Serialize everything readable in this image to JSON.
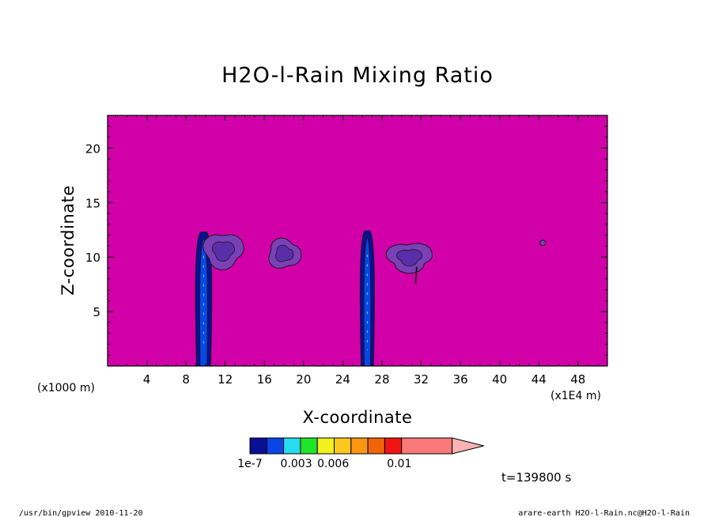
{
  "colors": {
    "background_field": "#d200a8",
    "contour_line": "#1a1a1a"
  },
  "chart_data": {
    "type": "heatmap",
    "title": "H2O-l-Rain Mixing Ratio",
    "xlabel": "X-coordinate",
    "ylabel": "Z-coordinate",
    "x_unit_left": "(x1000 m)",
    "x_unit_right": "(x1E4 m)",
    "xlim": [
      0,
      51
    ],
    "ylim": [
      0,
      23
    ],
    "x_ticks": [
      4,
      8,
      12,
      16,
      20,
      24,
      28,
      32,
      36,
      40,
      44,
      48
    ],
    "y_ticks": [
      5,
      10,
      15,
      20
    ],
    "colorbar": {
      "colors": [
        "#0a0f96",
        "#0a46e6",
        "#28dcf0",
        "#1ee628",
        "#f0f01e",
        "#fac81e",
        "#fa9614",
        "#f0640a",
        "#f01414",
        "#fa7878",
        "#fab4b4"
      ],
      "labels": [
        {
          "text": "1e-7",
          "index": 0
        },
        {
          "text": "0.003",
          "index": 2
        },
        {
          "text": "0.006",
          "index": 4
        },
        {
          "text": "0.01",
          "index": 6
        }
      ]
    },
    "features": [
      {
        "type": "column",
        "x_center": 9.8,
        "x_width": 1.6,
        "z_top": 12.3,
        "color_level": 0
      },
      {
        "type": "anvil",
        "x_center": 11.8,
        "z_center": 10.6,
        "x_width": 4.4,
        "z_height": 3.6,
        "color_level": -1
      },
      {
        "type": "cloud",
        "x_center": 18.0,
        "z_center": 10.3,
        "x_width": 3.6,
        "z_height": 3.0,
        "color_level": -1
      },
      {
        "type": "column",
        "x_center": 26.5,
        "x_width": 1.4,
        "z_top": 12.4,
        "color_level": 0
      },
      {
        "type": "cloud",
        "x_center": 30.8,
        "z_center": 10.0,
        "x_width": 5.0,
        "z_height": 3.0,
        "color_level": -1
      },
      {
        "type": "dot",
        "x_center": 44.4,
        "z_center": 11.3,
        "color_level": -1
      }
    ],
    "time_label": "t=139800 s"
  },
  "footer": {
    "left": "/usr/bin/gpview  2010-11-20",
    "right": "arare-earth_H2O-l-Rain.nc@H2O-l-Rain"
  }
}
